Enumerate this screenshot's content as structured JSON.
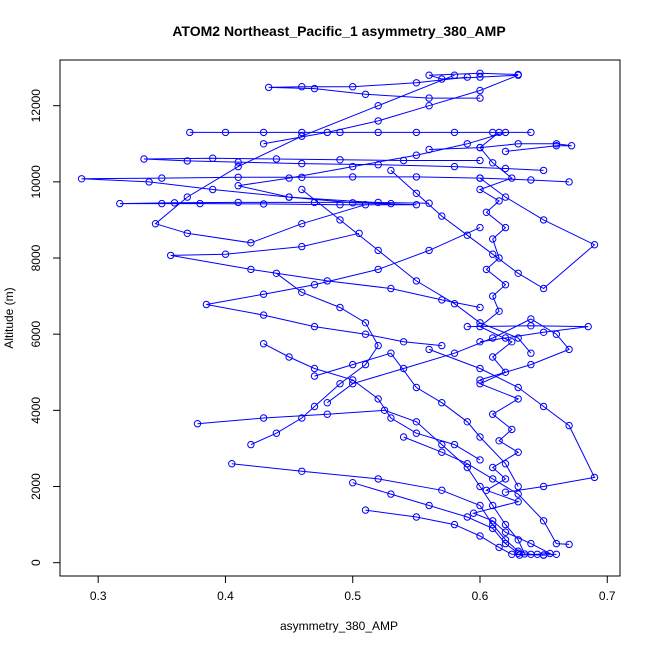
{
  "chart_data": {
    "type": "line",
    "title": "ATOM2 Northeast_Pacific_1 asymmetry_380_AMP",
    "xlabel": "asymmetry_380_AMP",
    "ylabel": "Altitude (m)",
    "xlim": [
      0.27,
      0.71
    ],
    "ylim": [
      -350,
      13200
    ],
    "x_ticks": [
      0.3,
      0.4,
      0.5,
      0.6,
      0.7
    ],
    "x_tick_labels": [
      "0.3",
      "0.4",
      "0.5",
      "0.6",
      "0.7"
    ],
    "y_ticks": [
      0,
      2000,
      4000,
      6000,
      8000,
      10000,
      12000
    ],
    "y_tick_labels": [
      "0",
      "2000",
      "4000",
      "6000",
      "8000",
      "10000",
      "12000"
    ],
    "grid": false,
    "legend": "none",
    "marker": "open-circle",
    "series_color": "#0000ff",
    "series": [
      {
        "points": [
          [
            0.631,
            200
          ],
          [
            0.645,
            220
          ],
          [
            0.655,
            240
          ],
          [
            0.64,
            500
          ],
          [
            0.62,
            800
          ],
          [
            0.61,
            1100
          ],
          [
            0.595,
            1300
          ],
          [
            0.63,
            1600
          ],
          [
            0.605,
            1900
          ],
          [
            0.62,
            2200
          ],
          [
            0.61,
            2500
          ],
          [
            0.63,
            2900
          ],
          [
            0.615,
            3200
          ],
          [
            0.625,
            3500
          ],
          [
            0.61,
            3900
          ],
          [
            0.63,
            4300
          ],
          [
            0.6,
            4700
          ],
          [
            0.62,
            5000
          ],
          [
            0.61,
            5400
          ],
          [
            0.625,
            5800
          ],
          [
            0.6,
            6200
          ],
          [
            0.615,
            6600
          ],
          [
            0.61,
            7000
          ],
          [
            0.62,
            7300
          ],
          [
            0.605,
            7700
          ],
          [
            0.615,
            8000
          ],
          [
            0.61,
            8500
          ],
          [
            0.62,
            8800
          ],
          [
            0.605,
            9200
          ],
          [
            0.615,
            9500
          ],
          [
            0.6,
            9800
          ],
          [
            0.625,
            10100
          ],
          [
            0.61,
            10500
          ],
          [
            0.6,
            10900
          ],
          [
            0.615,
            11300
          ],
          [
            0.64,
            11300
          ],
          [
            0.58,
            11300
          ],
          [
            0.52,
            11300
          ],
          [
            0.46,
            11300
          ],
          [
            0.4,
            11300
          ],
          [
            0.372,
            11300
          ],
          [
            0.43,
            11300
          ],
          [
            0.49,
            11300
          ],
          [
            0.55,
            11300
          ],
          [
            0.61,
            11300
          ]
        ]
      },
      {
        "points": [
          [
            0.62,
            11300
          ],
          [
            0.59,
            11000
          ],
          [
            0.55,
            10700
          ],
          [
            0.5,
            10400
          ],
          [
            0.45,
            10100
          ],
          [
            0.41,
            9900
          ],
          [
            0.45,
            9600
          ],
          [
            0.5,
            9450
          ],
          [
            0.55,
            9400
          ],
          [
            0.49,
            9400
          ],
          [
            0.43,
            9420
          ],
          [
            0.38,
            9430
          ],
          [
            0.35,
            9430
          ],
          [
            0.317,
            9430
          ],
          [
            0.36,
            9450
          ],
          [
            0.41,
            9460
          ],
          [
            0.47,
            9460
          ],
          [
            0.52,
            9460
          ],
          [
            0.56,
            9440
          ]
        ]
      },
      {
        "points": [
          [
            0.53,
            9430
          ],
          [
            0.45,
            9600
          ],
          [
            0.39,
            9800
          ],
          [
            0.34,
            10000
          ],
          [
            0.287,
            10080
          ],
          [
            0.35,
            10100
          ],
          [
            0.41,
            10120
          ],
          [
            0.46,
            10120
          ],
          [
            0.5,
            10130
          ],
          [
            0.55,
            10130
          ],
          [
            0.6,
            10100
          ],
          [
            0.64,
            10050
          ],
          [
            0.67,
            10000
          ]
        ]
      },
      {
        "points": [
          [
            0.65,
            10300
          ],
          [
            0.62,
            10350
          ],
          [
            0.58,
            10400
          ],
          [
            0.52,
            10450
          ],
          [
            0.46,
            10480
          ],
          [
            0.41,
            10520
          ],
          [
            0.37,
            10550
          ],
          [
            0.336,
            10600
          ],
          [
            0.39,
            10620
          ],
          [
            0.44,
            10600
          ],
          [
            0.49,
            10580
          ],
          [
            0.54,
            10560
          ],
          [
            0.6,
            10560
          ]
        ]
      },
      {
        "points": [
          [
            0.62,
            10800
          ],
          [
            0.66,
            10950
          ],
          [
            0.672,
            10950
          ],
          [
            0.66,
            11000
          ],
          [
            0.63,
            11000
          ],
          [
            0.6,
            10900
          ],
          [
            0.56,
            10850
          ]
        ]
      },
      {
        "points": [
          [
            0.43,
            11000
          ],
          [
            0.48,
            11300
          ],
          [
            0.52,
            11600
          ],
          [
            0.56,
            12000
          ],
          [
            0.6,
            12400
          ],
          [
            0.63,
            12800
          ],
          [
            0.6,
            12750
          ],
          [
            0.57,
            12700
          ],
          [
            0.56,
            12800
          ],
          [
            0.6,
            12850
          ],
          [
            0.63,
            12820
          ]
        ]
      },
      {
        "points": [
          [
            0.59,
            12750
          ],
          [
            0.55,
            12600
          ],
          [
            0.5,
            12500
          ],
          [
            0.46,
            12500
          ],
          [
            0.434,
            12480
          ],
          [
            0.47,
            12450
          ],
          [
            0.51,
            12300
          ],
          [
            0.56,
            12200
          ],
          [
            0.6,
            12200
          ]
        ]
      },
      {
        "points": [
          [
            0.58,
            12800
          ],
          [
            0.52,
            12000
          ],
          [
            0.46,
            11200
          ],
          [
            0.41,
            10400
          ],
          [
            0.37,
            9600
          ],
          [
            0.345,
            8900
          ],
          [
            0.37,
            8650
          ],
          [
            0.42,
            8400
          ],
          [
            0.46,
            8900
          ],
          [
            0.51,
            9400
          ]
        ]
      },
      {
        "points": [
          [
            0.505,
            8650
          ],
          [
            0.46,
            8300
          ],
          [
            0.4,
            8100
          ],
          [
            0.357,
            8070
          ],
          [
            0.42,
            7700
          ],
          [
            0.48,
            7400
          ],
          [
            0.53,
            7200
          ],
          [
            0.57,
            6900
          ],
          [
            0.6,
            6700
          ]
        ]
      },
      {
        "points": [
          [
            0.6,
            8800
          ],
          [
            0.56,
            8200
          ],
          [
            0.52,
            7700
          ],
          [
            0.47,
            7300
          ],
          [
            0.43,
            7050
          ],
          [
            0.385,
            6780
          ],
          [
            0.43,
            6500
          ],
          [
            0.47,
            6200
          ],
          [
            0.51,
            6000
          ],
          [
            0.54,
            5800
          ],
          [
            0.57,
            5700
          ]
        ]
      },
      {
        "points": [
          [
            0.44,
            7600
          ],
          [
            0.46,
            7100
          ],
          [
            0.49,
            6700
          ],
          [
            0.51,
            6300
          ],
          [
            0.52,
            5700
          ],
          [
            0.51,
            5200
          ],
          [
            0.49,
            4700
          ],
          [
            0.47,
            4100
          ],
          [
            0.46,
            3800
          ],
          [
            0.44,
            3400
          ],
          [
            0.42,
            3100
          ]
        ]
      },
      {
        "points": [
          [
            0.59,
            6200
          ],
          [
            0.64,
            6220
          ],
          [
            0.685,
            6200
          ],
          [
            0.65,
            6050
          ],
          [
            0.62,
            5900
          ],
          [
            0.6,
            5800
          ]
        ]
      },
      {
        "points": [
          [
            0.56,
            5600
          ],
          [
            0.6,
            5100
          ],
          [
            0.63,
            4600
          ],
          [
            0.65,
            4100
          ],
          [
            0.67,
            3600
          ],
          [
            0.69,
            2240
          ],
          [
            0.65,
            2000
          ],
          [
            0.62,
            1850
          ]
        ]
      },
      {
        "points": [
          [
            0.378,
            3650
          ],
          [
            0.43,
            3800
          ],
          [
            0.48,
            3900
          ],
          [
            0.525,
            4000
          ],
          [
            0.55,
            3700
          ],
          [
            0.57,
            3100
          ],
          [
            0.59,
            2500
          ],
          [
            0.6,
            2000
          ],
          [
            0.61,
            1500
          ],
          [
            0.62,
            1000
          ],
          [
            0.63,
            600
          ],
          [
            0.635,
            230
          ]
        ]
      },
      {
        "points": [
          [
            0.405,
            2600
          ],
          [
            0.46,
            2400
          ],
          [
            0.52,
            2200
          ],
          [
            0.57,
            1900
          ],
          [
            0.6,
            1500
          ],
          [
            0.61,
            1000
          ],
          [
            0.62,
            600
          ],
          [
            0.63,
            300
          ],
          [
            0.64,
            220
          ],
          [
            0.65,
            200
          ],
          [
            0.66,
            220
          ]
        ]
      },
      {
        "points": [
          [
            0.5,
            2100
          ],
          [
            0.53,
            1800
          ],
          [
            0.56,
            1500
          ],
          [
            0.59,
            1200
          ],
          [
            0.61,
            900
          ],
          [
            0.62,
            500
          ],
          [
            0.63,
            250
          ]
        ]
      },
      {
        "points": [
          [
            0.51,
            1380
          ],
          [
            0.55,
            1200
          ],
          [
            0.58,
            1000
          ],
          [
            0.6,
            700
          ],
          [
            0.615,
            400
          ],
          [
            0.625,
            220
          ],
          [
            0.65,
            200
          ]
        ]
      },
      {
        "points": [
          [
            0.54,
            3300
          ],
          [
            0.57,
            2900
          ],
          [
            0.59,
            2600
          ],
          [
            0.61,
            2200
          ],
          [
            0.63,
            1800
          ],
          [
            0.65,
            1100
          ],
          [
            0.66,
            500
          ],
          [
            0.67,
            480
          ]
        ]
      },
      {
        "points": [
          [
            0.47,
            4900
          ],
          [
            0.5,
            5200
          ],
          [
            0.53,
            5500
          ],
          [
            0.55,
            4600
          ],
          [
            0.57,
            4200
          ],
          [
            0.59,
            3700
          ],
          [
            0.6,
            3300
          ],
          [
            0.62,
            2600
          ],
          [
            0.63,
            2000
          ]
        ]
      },
      {
        "points": [
          [
            0.43,
            5750
          ],
          [
            0.45,
            5400
          ],
          [
            0.47,
            5100
          ],
          [
            0.5,
            4800
          ],
          [
            0.52,
            4300
          ],
          [
            0.53,
            3800
          ],
          [
            0.55,
            3400
          ],
          [
            0.58,
            3100
          ],
          [
            0.6,
            2700
          ]
        ]
      },
      {
        "points": [
          [
            0.48,
            4200
          ],
          [
            0.5,
            4700
          ],
          [
            0.54,
            5100
          ],
          [
            0.58,
            5500
          ],
          [
            0.61,
            5900
          ],
          [
            0.64,
            6400
          ],
          [
            0.66,
            6000
          ],
          [
            0.67,
            5600
          ],
          [
            0.64,
            5200
          ],
          [
            0.6,
            4800
          ]
        ]
      },
      {
        "points": [
          [
            0.46,
            9800
          ],
          [
            0.49,
            9000
          ],
          [
            0.52,
            8200
          ],
          [
            0.55,
            7400
          ],
          [
            0.58,
            6800
          ],
          [
            0.6,
            6300
          ],
          [
            0.63,
            5900
          ],
          [
            0.64,
            5500
          ]
        ]
      },
      {
        "points": [
          [
            0.53,
            10300
          ],
          [
            0.55,
            9700
          ],
          [
            0.57,
            9100
          ],
          [
            0.59,
            8600
          ],
          [
            0.61,
            8100
          ],
          [
            0.63,
            7600
          ],
          [
            0.65,
            7200
          ],
          [
            0.69,
            8350
          ],
          [
            0.65,
            9000
          ],
          [
            0.62,
            9600
          ],
          [
            0.6,
            10100
          ]
        ]
      }
    ]
  }
}
